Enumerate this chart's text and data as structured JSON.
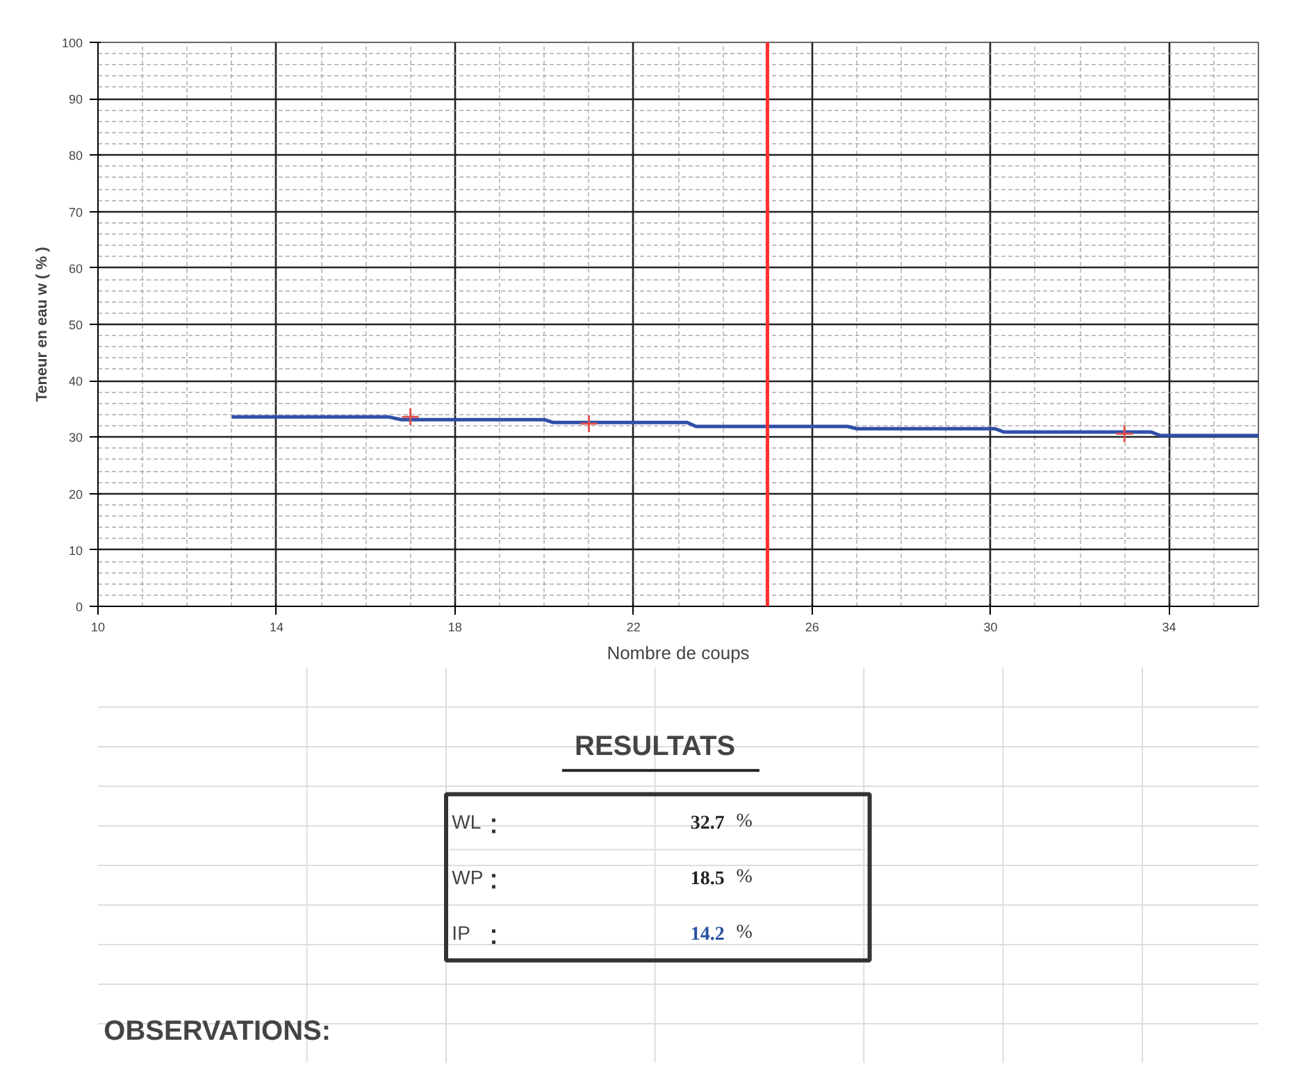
{
  "chart_data": [
    {
      "type": "line",
      "xlabel": "Nombre de coups",
      "ylabel": "Teneur en eau w ( % )",
      "xlim": [
        10,
        36
      ],
      "xticks": [
        10,
        14,
        18,
        22,
        26,
        30,
        34
      ],
      "ylim": [
        0,
        100
      ],
      "yticks": [
        0,
        10,
        20,
        30,
        40,
        50,
        60,
        70,
        80,
        90,
        100
      ],
      "grid": true,
      "series": [
        {
          "type": "line",
          "color": "#2f4fa8",
          "x": [
            13,
            16.5,
            16.8,
            20.0,
            20.2,
            23.2,
            23.4,
            26.8,
            27.0,
            30.1,
            30.3,
            33.6,
            33.8,
            36
          ],
          "values": [
            33.6,
            33.6,
            33.1,
            33.1,
            32.6,
            32.6,
            31.9,
            31.9,
            31.5,
            31.5,
            30.9,
            30.9,
            30.3,
            30.3
          ]
        },
        {
          "type": "scatter",
          "marker": "cross",
          "color": "#e05050",
          "x": [
            17,
            21,
            33
          ],
          "values": [
            33.6,
            32.4,
            30.6
          ]
        }
      ],
      "ref_lines": [
        {
          "axis": "x",
          "value": 25,
          "color": "#ff3030"
        }
      ]
    },
    {
      "type": "other",
      "title": "RESULTATS",
      "categories": [
        "WL",
        "WP",
        "IP"
      ],
      "values": [
        32.7,
        18.5,
        14.2
      ],
      "value_labels": [
        "32.7 %",
        "18.5 %",
        "14.2 %"
      ],
      "colors": [
        "#222222",
        "#222222",
        "#2a52a0"
      ],
      "annotations": [
        "OBSERVATIONS:"
      ]
    }
  ]
}
